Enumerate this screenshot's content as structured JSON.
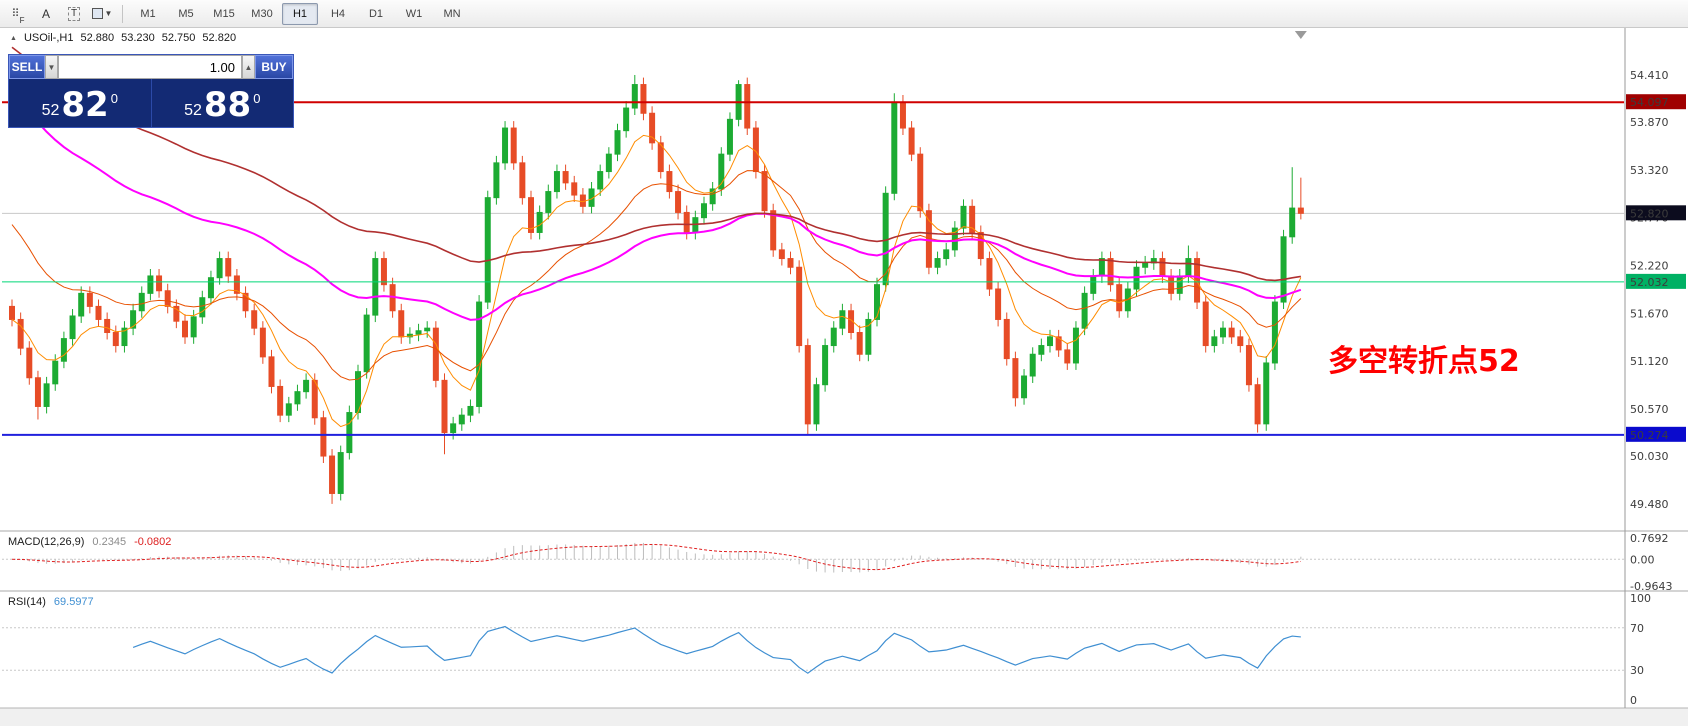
{
  "toolbar": {
    "tools": {
      "f": "F",
      "a": "A",
      "t": "T"
    },
    "timeframes": [
      "M1",
      "M5",
      "M15",
      "M30",
      "H1",
      "H4",
      "D1",
      "W1",
      "MN"
    ],
    "active_timeframe": "H1"
  },
  "symbol": {
    "name": "USOil-,H1",
    "open": "52.880",
    "high": "53.230",
    "low": "52.750",
    "close": "52.820"
  },
  "trade_panel": {
    "sell_label": "SELL",
    "buy_label": "BUY",
    "volume": "1.00",
    "sell_price": {
      "prefix": "52",
      "big": "82",
      "sup": "0"
    },
    "buy_price": {
      "prefix": "52",
      "big": "88",
      "sup": "0"
    }
  },
  "annotation": {
    "text": "多空转折点52",
    "color": "#ff0000"
  },
  "price_axis": {
    "ticks": [
      "54.410",
      "53.870",
      "53.320",
      "52.770",
      "52.220",
      "51.670",
      "51.120",
      "50.570",
      "50.030",
      "49.480"
    ],
    "range": [
      49.18,
      54.95
    ]
  },
  "hlines": [
    {
      "price": 54.097,
      "label": "54.097",
      "line_color": "#d00000",
      "tag_bg": "#a00000",
      "width": 2
    },
    {
      "price": 52.032,
      "label": "52.032",
      "line_color": "#00d678",
      "tag_bg": "#00b164",
      "width": 1
    },
    {
      "price": 50.274,
      "label": "50.274",
      "line_color": "#2020dd",
      "tag_bg": "#0a0acd",
      "width": 2
    }
  ],
  "current_price": {
    "value": 52.82,
    "label": "52.820",
    "line_color": "#c8c8c8",
    "tag_bg": "#0c0c1e"
  },
  "chart_data": {
    "type": "candlestick",
    "title": "USOil-,H1",
    "up_color": "#1cab33",
    "down_color": "#e74c26",
    "ylim": [
      49.18,
      54.95
    ],
    "candles": [
      [
        51.75,
        51.83,
        51.52,
        51.6
      ],
      [
        51.6,
        51.68,
        51.19,
        51.27
      ],
      [
        51.27,
        51.35,
        50.85,
        50.93
      ],
      [
        50.93,
        51.01,
        50.45,
        50.6
      ],
      [
        50.6,
        50.94,
        50.52,
        50.86
      ],
      [
        50.86,
        51.2,
        50.78,
        51.12
      ],
      [
        51.12,
        51.46,
        51.04,
        51.38
      ],
      [
        51.38,
        51.72,
        51.3,
        51.64
      ],
      [
        51.64,
        51.98,
        51.56,
        51.9
      ],
      [
        51.9,
        51.98,
        51.67,
        51.75
      ],
      [
        51.75,
        51.83,
        51.52,
        51.6
      ],
      [
        51.6,
        51.68,
        51.37,
        51.45
      ],
      [
        51.45,
        51.53,
        51.22,
        51.3
      ],
      [
        51.3,
        51.58,
        51.22,
        51.5
      ],
      [
        51.5,
        51.78,
        51.42,
        51.7
      ],
      [
        51.7,
        51.98,
        51.62,
        51.9
      ],
      [
        51.9,
        52.18,
        51.82,
        52.1
      ],
      [
        52.1,
        52.18,
        51.85,
        51.93
      ],
      [
        51.93,
        52.01,
        51.67,
        51.75
      ],
      [
        51.75,
        51.83,
        51.5,
        51.58
      ],
      [
        51.58,
        51.66,
        51.32,
        51.4
      ],
      [
        51.4,
        51.71,
        51.32,
        51.63
      ],
      [
        51.63,
        51.93,
        51.55,
        51.85
      ],
      [
        51.85,
        52.16,
        51.77,
        52.08
      ],
      [
        52.08,
        52.38,
        52.0,
        52.3
      ],
      [
        52.3,
        52.38,
        52.02,
        52.1
      ],
      [
        52.1,
        52.18,
        51.82,
        51.9
      ],
      [
        51.9,
        51.98,
        51.62,
        51.7
      ],
      [
        51.7,
        51.78,
        51.42,
        51.5
      ],
      [
        51.5,
        51.58,
        51.09,
        51.17
      ],
      [
        51.17,
        51.25,
        50.75,
        50.83
      ],
      [
        50.83,
        50.91,
        50.42,
        50.5
      ],
      [
        50.5,
        50.71,
        50.42,
        50.63
      ],
      [
        50.63,
        50.85,
        50.55,
        50.77
      ],
      [
        50.77,
        50.98,
        50.69,
        50.9
      ],
      [
        50.9,
        50.98,
        50.39,
        50.47
      ],
      [
        50.47,
        50.55,
        49.95,
        50.03
      ],
      [
        50.03,
        50.11,
        49.48,
        49.6
      ],
      [
        49.6,
        50.15,
        49.52,
        50.07
      ],
      [
        50.07,
        50.61,
        49.99,
        50.53
      ],
      [
        50.53,
        51.08,
        50.45,
        51.0
      ],
      [
        51.0,
        51.73,
        50.92,
        51.65
      ],
      [
        51.65,
        52.38,
        51.57,
        52.3
      ],
      [
        52.3,
        52.38,
        51.92,
        52.0
      ],
      [
        52.0,
        52.08,
        51.62,
        51.7
      ],
      [
        51.7,
        51.78,
        51.32,
        51.4
      ],
      [
        51.4,
        51.51,
        51.32,
        51.43
      ],
      [
        51.43,
        51.55,
        51.35,
        51.47
      ],
      [
        51.47,
        51.58,
        51.39,
        51.5
      ],
      [
        51.5,
        51.58,
        50.82,
        50.9
      ],
      [
        50.9,
        50.98,
        50.05,
        50.3
      ],
      [
        50.3,
        50.48,
        50.22,
        50.4
      ],
      [
        50.4,
        50.58,
        50.32,
        50.5
      ],
      [
        50.5,
        50.68,
        50.42,
        50.6
      ],
      [
        50.6,
        51.88,
        50.52,
        51.8
      ],
      [
        51.8,
        53.08,
        51.72,
        53.0
      ],
      [
        53.0,
        53.48,
        52.92,
        53.4
      ],
      [
        53.4,
        53.88,
        53.32,
        53.8
      ],
      [
        53.8,
        53.88,
        53.32,
        53.4
      ],
      [
        53.4,
        53.48,
        52.92,
        53.0
      ],
      [
        53.0,
        53.08,
        52.52,
        52.6
      ],
      [
        52.6,
        52.91,
        52.52,
        52.83
      ],
      [
        52.83,
        53.15,
        52.75,
        53.07
      ],
      [
        53.07,
        53.38,
        52.99,
        53.3
      ],
      [
        53.3,
        53.38,
        53.09,
        53.17
      ],
      [
        53.17,
        53.25,
        52.95,
        53.03
      ],
      [
        53.03,
        53.11,
        52.82,
        52.9
      ],
      [
        52.9,
        53.18,
        52.82,
        53.1
      ],
      [
        53.1,
        53.38,
        53.02,
        53.3
      ],
      [
        53.3,
        53.58,
        53.22,
        53.5
      ],
      [
        53.5,
        53.85,
        53.42,
        53.77
      ],
      [
        53.77,
        54.11,
        53.69,
        54.03
      ],
      [
        54.03,
        54.41,
        53.95,
        54.3
      ],
      [
        54.3,
        54.38,
        53.89,
        53.97
      ],
      [
        53.97,
        54.05,
        53.55,
        53.63
      ],
      [
        53.63,
        53.71,
        53.22,
        53.3
      ],
      [
        53.3,
        53.38,
        52.99,
        53.07
      ],
      [
        53.07,
        53.15,
        52.75,
        52.83
      ],
      [
        52.83,
        52.91,
        52.52,
        52.6
      ],
      [
        52.6,
        52.85,
        52.52,
        52.77
      ],
      [
        52.77,
        53.01,
        52.69,
        52.93
      ],
      [
        52.93,
        53.18,
        52.85,
        53.1
      ],
      [
        53.1,
        53.58,
        53.02,
        53.5
      ],
      [
        53.5,
        53.98,
        53.42,
        53.9
      ],
      [
        53.9,
        54.35,
        53.82,
        54.3
      ],
      [
        54.3,
        54.38,
        53.72,
        53.8
      ],
      [
        53.8,
        53.88,
        53.22,
        53.3
      ],
      [
        53.3,
        53.38,
        52.77,
        52.85
      ],
      [
        52.85,
        52.93,
        52.32,
        52.4
      ],
      [
        52.4,
        52.48,
        52.22,
        52.3
      ],
      [
        52.3,
        52.38,
        52.12,
        52.2
      ],
      [
        52.2,
        52.28,
        51.22,
        51.3
      ],
      [
        51.3,
        51.38,
        50.27,
        50.4
      ],
      [
        50.4,
        50.93,
        50.32,
        50.85
      ],
      [
        50.85,
        51.38,
        50.77,
        51.3
      ],
      [
        51.3,
        51.58,
        51.22,
        51.5
      ],
      [
        51.5,
        51.78,
        51.42,
        51.7
      ],
      [
        51.7,
        51.78,
        51.37,
        51.45
      ],
      [
        51.45,
        51.53,
        51.12,
        51.2
      ],
      [
        51.2,
        51.68,
        51.12,
        51.6
      ],
      [
        51.6,
        52.08,
        51.52,
        52.0
      ],
      [
        52.0,
        53.13,
        51.92,
        53.05
      ],
      [
        53.05,
        54.2,
        52.97,
        54.1
      ],
      [
        54.1,
        54.18,
        53.72,
        53.8
      ],
      [
        53.8,
        53.88,
        53.42,
        53.5
      ],
      [
        53.5,
        53.58,
        52.77,
        52.85
      ],
      [
        52.85,
        52.93,
        52.12,
        52.2
      ],
      [
        52.2,
        52.38,
        52.12,
        52.3
      ],
      [
        52.3,
        52.48,
        52.22,
        52.4
      ],
      [
        52.4,
        52.73,
        52.32,
        52.65
      ],
      [
        52.65,
        52.98,
        52.57,
        52.9
      ],
      [
        52.9,
        52.98,
        52.52,
        52.6
      ],
      [
        52.6,
        52.68,
        52.22,
        52.3
      ],
      [
        52.3,
        52.38,
        51.87,
        51.95
      ],
      [
        51.95,
        52.03,
        51.52,
        51.6
      ],
      [
        51.6,
        51.68,
        51.07,
        51.15
      ],
      [
        51.15,
        51.23,
        50.6,
        50.7
      ],
      [
        50.7,
        51.03,
        50.62,
        50.95
      ],
      [
        50.95,
        51.28,
        50.87,
        51.2
      ],
      [
        51.2,
        51.38,
        51.12,
        51.3
      ],
      [
        51.3,
        51.48,
        51.22,
        51.4
      ],
      [
        51.4,
        51.48,
        51.17,
        51.25
      ],
      [
        51.25,
        51.33,
        51.02,
        51.1
      ],
      [
        51.1,
        51.58,
        51.02,
        51.5
      ],
      [
        51.5,
        51.98,
        51.42,
        51.9
      ],
      [
        51.9,
        52.18,
        51.82,
        52.1
      ],
      [
        52.1,
        52.38,
        52.02,
        52.3
      ],
      [
        52.3,
        52.38,
        51.92,
        52.0
      ],
      [
        52.0,
        52.08,
        51.62,
        51.7
      ],
      [
        51.7,
        52.03,
        51.62,
        51.95
      ],
      [
        51.95,
        52.28,
        51.87,
        52.2
      ],
      [
        52.2,
        52.33,
        52.12,
        52.25
      ],
      [
        52.25,
        52.4,
        52.17,
        52.3
      ],
      [
        52.3,
        52.38,
        52.02,
        52.1
      ],
      [
        52.1,
        52.18,
        51.82,
        51.9
      ],
      [
        51.9,
        52.18,
        51.82,
        52.1
      ],
      [
        52.1,
        52.45,
        52.02,
        52.3
      ],
      [
        52.3,
        52.38,
        51.72,
        51.8
      ],
      [
        51.8,
        51.88,
        51.22,
        51.3
      ],
      [
        51.3,
        51.48,
        51.22,
        51.4
      ],
      [
        51.4,
        51.58,
        51.32,
        51.5
      ],
      [
        51.5,
        51.58,
        51.32,
        51.4
      ],
      [
        51.4,
        51.48,
        51.22,
        51.3
      ],
      [
        51.3,
        51.38,
        50.77,
        50.85
      ],
      [
        50.85,
        50.93,
        50.3,
        50.4
      ],
      [
        50.4,
        51.18,
        50.32,
        51.1
      ],
      [
        51.1,
        51.88,
        51.02,
        51.8
      ],
      [
        51.8,
        52.63,
        51.72,
        52.55
      ],
      [
        52.55,
        53.35,
        52.47,
        52.88
      ],
      [
        52.88,
        53.23,
        52.75,
        52.82
      ]
    ],
    "ma_lines": [
      {
        "period": 8,
        "color": "#ff8c00",
        "width": 1,
        "seed": null
      },
      {
        "period": 21,
        "color": "#e85000",
        "width": 1,
        "seed": 52.8
      },
      {
        "period": 55,
        "color": "#ff00ff",
        "width": 2,
        "seed": 54.3
      },
      {
        "period": 89,
        "color": "#b03030",
        "width": 1.6,
        "seed": 54.8
      }
    ]
  },
  "macd": {
    "name": "MACD(12,26,9)",
    "value_main": "0.2345",
    "value_signal": "-0.0802",
    "axis": [
      "0.7692",
      "0.00",
      "-0.9643"
    ],
    "hist_color": "#bdbdbd",
    "signal_color": "#e02020",
    "params": [
      12,
      26,
      9
    ]
  },
  "rsi": {
    "name": "RSI(14)",
    "value": "69.5977",
    "axis_top": "100",
    "axis_bottom": "0",
    "levels": [
      70,
      30
    ],
    "level_labels": [
      "70",
      "30"
    ],
    "line_color": "#3f8fd2",
    "period": 14
  }
}
